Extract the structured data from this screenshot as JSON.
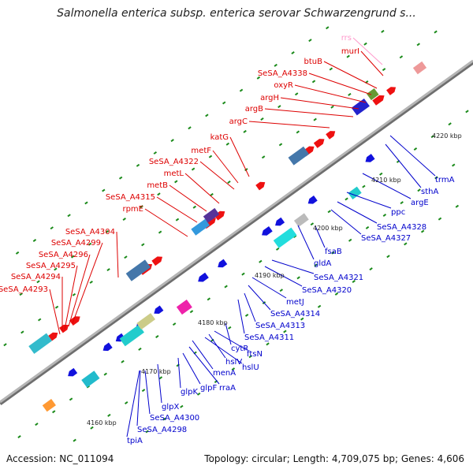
{
  "title": "Salmonella enterica subsp. enterica serovar Schwarzengrund s...",
  "footer": {
    "accession_label": "Accession:",
    "accession": "NC_011094",
    "topology_label": "Topology:",
    "topology": "circular",
    "length_label": "Length:",
    "length": "4,709,075 bp",
    "genes_label": "Genes:",
    "genes": "4,606"
  },
  "colors": {
    "forward_label": "#dd0000",
    "reverse_label": "#0000cc",
    "rrna_label": "#ff99cc",
    "backbone": "#999999",
    "tick": "#1a8a1a"
  },
  "kbp_labels": [
    "4160 kbp",
    "4170 kbp",
    "4180 kbp",
    "4190 kbp",
    "4200 kbp",
    "4210 kbp",
    "4220 kbp"
  ],
  "upper_labels": [
    "rrs",
    "murI",
    "btuB",
    "SeSA_A4338",
    "oxyR",
    "argH",
    "argB",
    "argC",
    "katG",
    "metF",
    "SeSA_A4322",
    "metL",
    "metB",
    "SeSA_A4315",
    "rpmE",
    "SeSA_A4304",
    "SeSA_A4299",
    "SeSA_A4296",
    "SeSA_A4295",
    "SeSA_A4294",
    "SeSA_A4293"
  ],
  "lower_labels": [
    "trmA",
    "sthA",
    "argE",
    "ppc",
    "SeSA_A4328",
    "SeSA_A4327",
    "fsaB",
    "gldA",
    "SeSA_A4321",
    "SeSA_A4320",
    "metJ",
    "SeSA_A4314",
    "SeSA_A4313",
    "SeSA_A4311",
    "cytR",
    "ftsN",
    "hslV",
    "hslU",
    "menA",
    "rraA",
    "glpF",
    "glpK",
    "glpX",
    "SeSA_A4300",
    "SeSA_A4298",
    "tpiA"
  ]
}
